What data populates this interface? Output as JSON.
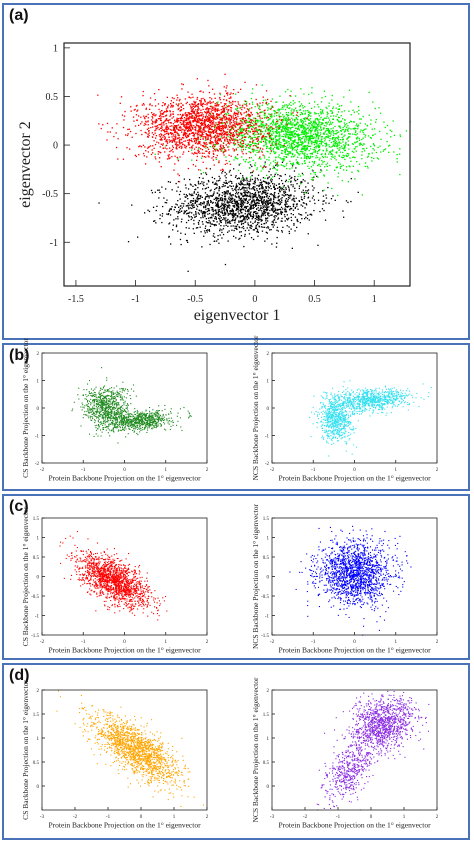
{
  "panels": {
    "a": "(a)",
    "b": "(b)",
    "c": "(c)",
    "d": "(d)"
  },
  "chart_data": [
    {
      "id": "a",
      "type": "scatter",
      "xlabel": "eigenvector 1",
      "ylabel": "eigenvector 2",
      "xlim": [
        -1.6,
        1.3
      ],
      "ylim": [
        -1.45,
        1.05
      ],
      "xticks": [
        -1.5,
        -1,
        -0.5,
        0,
        0.5,
        1
      ],
      "yticks": [
        -1,
        -0.5,
        0,
        0.5,
        1
      ],
      "series": [
        {
          "color": "#000000",
          "clusters": [
            {
              "cx": -0.1,
              "cy": -0.6,
              "sx": 0.3,
              "sy": 0.16,
              "r": 0.1,
              "n": 1700
            }
          ]
        },
        {
          "color": "#00ee00",
          "clusters": [
            {
              "cx": 0.35,
              "cy": 0.1,
              "sx": 0.33,
              "sy": 0.17,
              "r": -0.1,
              "n": 2000
            }
          ]
        },
        {
          "color": "#ff0000",
          "clusters": [
            {
              "cx": -0.45,
              "cy": 0.2,
              "sx": 0.27,
              "sy": 0.16,
              "r": 0.05,
              "n": 1800
            }
          ]
        }
      ]
    },
    {
      "id": "b-left",
      "type": "scatter",
      "xlabel": "Protein Backbone Projection on the 1° eigenvector",
      "ylabel": "CS Backbone Projection on the 1° eigenvector",
      "xlim": [
        -2,
        2
      ],
      "ylim": [
        -2,
        2
      ],
      "xticks": [
        -2,
        -1,
        0,
        1,
        2
      ],
      "yticks": [
        -2,
        -1,
        0,
        1,
        2
      ],
      "series": [
        {
          "color": "#1f8a1f",
          "clusters": [
            {
              "cx": -0.45,
              "cy": 0.05,
              "sx": 0.28,
              "sy": 0.38,
              "r": 0.0,
              "n": 700
            },
            {
              "cx": 0.35,
              "cy": -0.45,
              "sx": 0.38,
              "sy": 0.18,
              "r": 0.3,
              "n": 700
            }
          ]
        }
      ]
    },
    {
      "id": "b-right",
      "type": "scatter",
      "xlabel": "Protein Backbone Projection on the 1° eigenvector",
      "ylabel": "NCS Backbone Projection on the 1° eigenvector",
      "xlim": [
        -2,
        2
      ],
      "ylim": [
        -2,
        2
      ],
      "xticks": [
        -2,
        -1,
        0,
        1,
        2
      ],
      "yticks": [
        -2,
        -1,
        0,
        1,
        2
      ],
      "series": [
        {
          "color": "#33e0f0",
          "clusters": [
            {
              "cx": -0.45,
              "cy": -0.35,
              "sx": 0.2,
              "sy": 0.42,
              "r": 0.0,
              "n": 650
            },
            {
              "cx": 0.4,
              "cy": 0.3,
              "sx": 0.45,
              "sy": 0.2,
              "r": 0.2,
              "n": 750
            }
          ]
        }
      ]
    },
    {
      "id": "c-left",
      "type": "scatter",
      "xlabel": "Protein Backbone Projection on the 1° eigenvector",
      "ylabel": "CS Backbone Projection on the 1° eigenvector",
      "xlim": [
        -2,
        2
      ],
      "ylim": [
        -1.5,
        1.5
      ],
      "xticks": [
        -2,
        -1,
        0,
        1,
        2
      ],
      "yticks": [
        -1.5,
        -1,
        -0.5,
        0,
        0.5,
        1,
        1.5
      ],
      "series": [
        {
          "color": "#ff0000",
          "clusters": [
            {
              "cx": -0.25,
              "cy": -0.1,
              "sx": 0.42,
              "sy": 0.33,
              "r": -0.6,
              "n": 1600
            }
          ]
        }
      ]
    },
    {
      "id": "c-right",
      "type": "scatter",
      "xlabel": "Protein Backbone Projection on the 1° eigenvector",
      "ylabel": "NCS Backbone Projection on the 1° eigenvector",
      "xlim": [
        -2,
        2
      ],
      "ylim": [
        -1.5,
        1.5
      ],
      "xticks": [
        -2,
        -1,
        0,
        1,
        2
      ],
      "yticks": [
        -1.5,
        -1,
        -0.5,
        0,
        0.5,
        1,
        1.5
      ],
      "series": [
        {
          "color": "#0000ff",
          "clusters": [
            {
              "cx": 0.0,
              "cy": 0.1,
              "sx": 0.45,
              "sy": 0.4,
              "r": 0.0,
              "n": 1600
            }
          ]
        }
      ]
    },
    {
      "id": "d-left",
      "type": "scatter",
      "xlabel": "Protein Backbone Projection on the 1° eigenvector",
      "ylabel": "CS Backbone Projection on the 1° eigenvector",
      "xlim": [
        -3,
        2
      ],
      "ylim": [
        -0.5,
        2
      ],
      "xticks": [
        -3,
        -2,
        -1,
        0,
        1,
        2
      ],
      "yticks": [
        0,
        0.5,
        1,
        1.5,
        2
      ],
      "series": [
        {
          "color": "#ffa500",
          "clusters": [
            {
              "cx": -0.15,
              "cy": 0.75,
              "sx": 0.65,
              "sy": 0.35,
              "r": -0.7,
              "n": 1600
            }
          ]
        }
      ]
    },
    {
      "id": "d-right",
      "type": "scatter",
      "xlabel": "Protein Backbone Projection on the 1° eigenvector",
      "ylabel": "NCS Backbone Projection on the 1° eigenvector",
      "xlim": [
        -3,
        2
      ],
      "ylim": [
        -0.5,
        2
      ],
      "xticks": [
        -3,
        -2,
        -1,
        0,
        1,
        2
      ],
      "yticks": [
        0,
        0.5,
        1,
        1.5,
        2
      ],
      "series": [
        {
          "color": "#8a2be2",
          "clusters": [
            {
              "cx": 0.35,
              "cy": 1.3,
              "sx": 0.5,
              "sy": 0.28,
              "r": 0.3,
              "n": 1100
            },
            {
              "cx": -0.7,
              "cy": 0.3,
              "sx": 0.35,
              "sy": 0.3,
              "r": 0.5,
              "n": 450
            }
          ]
        }
      ]
    }
  ]
}
